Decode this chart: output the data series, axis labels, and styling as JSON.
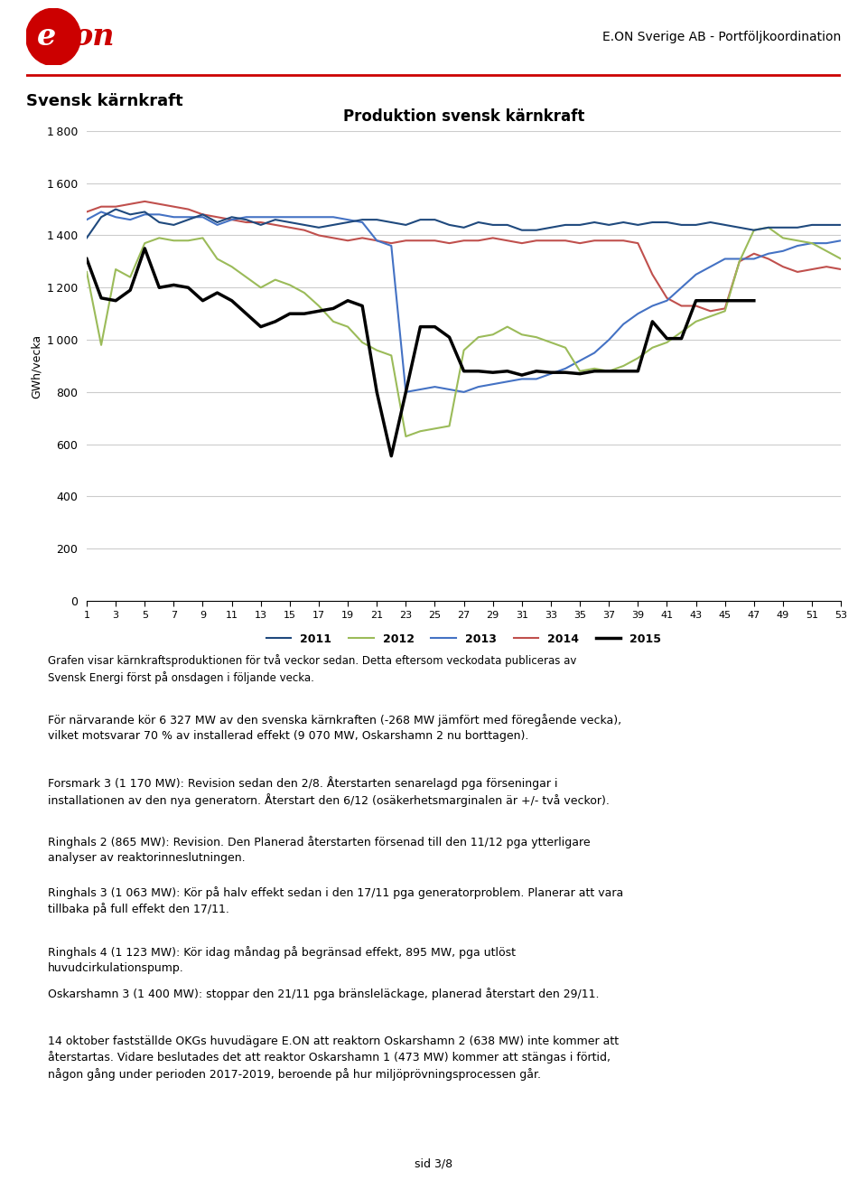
{
  "title": "Produktion svensk kärnkraft",
  "ylabel": "GWh/vecka",
  "header_right": "E.ON Sverige AB - Portföljkoordination",
  "section_title": "Svensk kärnkraft",
  "ylim": [
    0,
    1800
  ],
  "yticks": [
    0,
    200,
    400,
    600,
    800,
    1000,
    1200,
    1400,
    1600,
    1800
  ],
  "xticks": [
    1,
    3,
    5,
    7,
    9,
    11,
    13,
    15,
    17,
    19,
    21,
    23,
    25,
    27,
    29,
    31,
    33,
    35,
    37,
    39,
    41,
    43,
    45,
    47,
    49,
    51,
    53
  ],
  "legend_labels": [
    "2011",
    "2012",
    "2013",
    "2014",
    "2015"
  ],
  "legend_colors": [
    "#1f497d",
    "#9bbb59",
    "#4472c4",
    "#c0504d",
    "#000000"
  ],
  "line_widths": [
    1.5,
    1.5,
    1.5,
    1.5,
    2.5
  ],
  "series_2011": [
    1390,
    1470,
    1500,
    1480,
    1490,
    1450,
    1440,
    1460,
    1480,
    1450,
    1470,
    1460,
    1440,
    1460,
    1450,
    1440,
    1430,
    1440,
    1450,
    1460,
    1460,
    1450,
    1440,
    1460,
    1460,
    1440,
    1430,
    1450,
    1440,
    1440,
    1420,
    1420,
    1430,
    1440,
    1440,
    1450,
    1440,
    1450,
    1440,
    1450,
    1450,
    1440,
    1440,
    1450,
    1440,
    1430,
    1420,
    1430,
    1430,
    1430,
    1440,
    1440,
    1440
  ],
  "series_2012": [
    1260,
    980,
    1270,
    1240,
    1370,
    1390,
    1380,
    1380,
    1390,
    1310,
    1280,
    1240,
    1200,
    1230,
    1210,
    1180,
    1130,
    1070,
    1050,
    990,
    960,
    940,
    630,
    650,
    660,
    670,
    960,
    1010,
    1020,
    1050,
    1020,
    1010,
    990,
    970,
    880,
    890,
    880,
    900,
    930,
    970,
    990,
    1030,
    1070,
    1090,
    1110,
    1300,
    1420,
    1430,
    1390,
    1380,
    1370,
    1340,
    1310
  ],
  "series_2013": [
    1460,
    1490,
    1470,
    1460,
    1480,
    1480,
    1470,
    1470,
    1470,
    1440,
    1460,
    1470,
    1470,
    1470,
    1470,
    1470,
    1470,
    1470,
    1460,
    1450,
    1380,
    1360,
    800,
    810,
    820,
    810,
    800,
    820,
    830,
    840,
    850,
    850,
    870,
    890,
    920,
    950,
    1000,
    1060,
    1100,
    1130,
    1150,
    1200,
    1250,
    1280,
    1310,
    1310,
    1310,
    1330,
    1340,
    1360,
    1370,
    1370,
    1380
  ],
  "series_2014": [
    1490,
    1510,
    1510,
    1520,
    1530,
    1520,
    1510,
    1500,
    1480,
    1470,
    1460,
    1450,
    1450,
    1440,
    1430,
    1420,
    1400,
    1390,
    1380,
    1390,
    1380,
    1370,
    1380,
    1380,
    1380,
    1370,
    1380,
    1380,
    1390,
    1380,
    1370,
    1380,
    1380,
    1380,
    1370,
    1380,
    1380,
    1380,
    1370,
    1250,
    1160,
    1130,
    1130,
    1110,
    1120,
    1300,
    1330,
    1310,
    1280,
    1260,
    1270,
    1280,
    1270
  ],
  "series_2015": [
    1310,
    1160,
    1150,
    1190,
    1350,
    1200,
    1210,
    1200,
    1150,
    1180,
    1150,
    1100,
    1050,
    1070,
    1100,
    1100,
    1110,
    1120,
    1150,
    1130,
    800,
    555,
    800,
    1050,
    1050,
    1010,
    880,
    880,
    875,
    880,
    865,
    880,
    875,
    875,
    870,
    880,
    880,
    880,
    880,
    1070,
    1005,
    1005,
    1150,
    1150,
    1150,
    1150,
    1150,
    null,
    null,
    null,
    null,
    null,
    null,
    null
  ],
  "body_text_0": "Grafen visar kärnkraftsproduktionen för två veckor sedan. Detta eftersom veckodata publiceras av\nSvensk Energi först på onsdagen i följande vecka.",
  "body_text_1": "För närvarande kör 6 327 MW av den svenska kärnkraften (-268 MW jämfört med föregående vecka),\nvilket motsvarar 70 % av installerad effekt (9 070 MW, Oskarshamn 2 nu borttagen).",
  "body_text_2": "Forsmark 3 (1 170 MW): Revision sedan den 2/8. Återstarten senarelagd pga förseningar i\ninstallationen av den nya generatorn. Återstart den 6/12 (osäkerhetsmarginalen är +/- två veckor).",
  "body_text_3": "Ringhals 2 (865 MW): Revision. Den Planerad återstarten försenad till den 11/12 pga ytterligare\nanalyser av reaktorinneslutningen.",
  "body_text_4": "Ringhals 3 (1 063 MW): Kör på halv effekt sedan i den 17/11 pga generatorproblem. Planerar att vara\ntillbaka på full effekt den 17/11.",
  "body_text_5": "Ringhals 4 (1 123 MW): Kör idag måndag på begränsad effekt, 895 MW, pga utlöst\nhuvudcirkulationspump.",
  "body_text_6": "Oskarshamn 3 (1 400 MW): stoppar den 21/11 pga bränsleläckage, planerad återstart den 29/11.",
  "body_text_7": "14 oktober fastställde OKGs huvudägare E.ON att reaktorn Oskarshamn 2 (638 MW) inte kommer att\nåterstartas. Vidare beslutades det att reaktor Oskarshamn 1 (473 MW) kommer att stängas i förtid,\nnågon gång under perioden 2017-2019, beroende på hur miljöprövningsprocessen går.",
  "footer_text": "sid 3/8"
}
